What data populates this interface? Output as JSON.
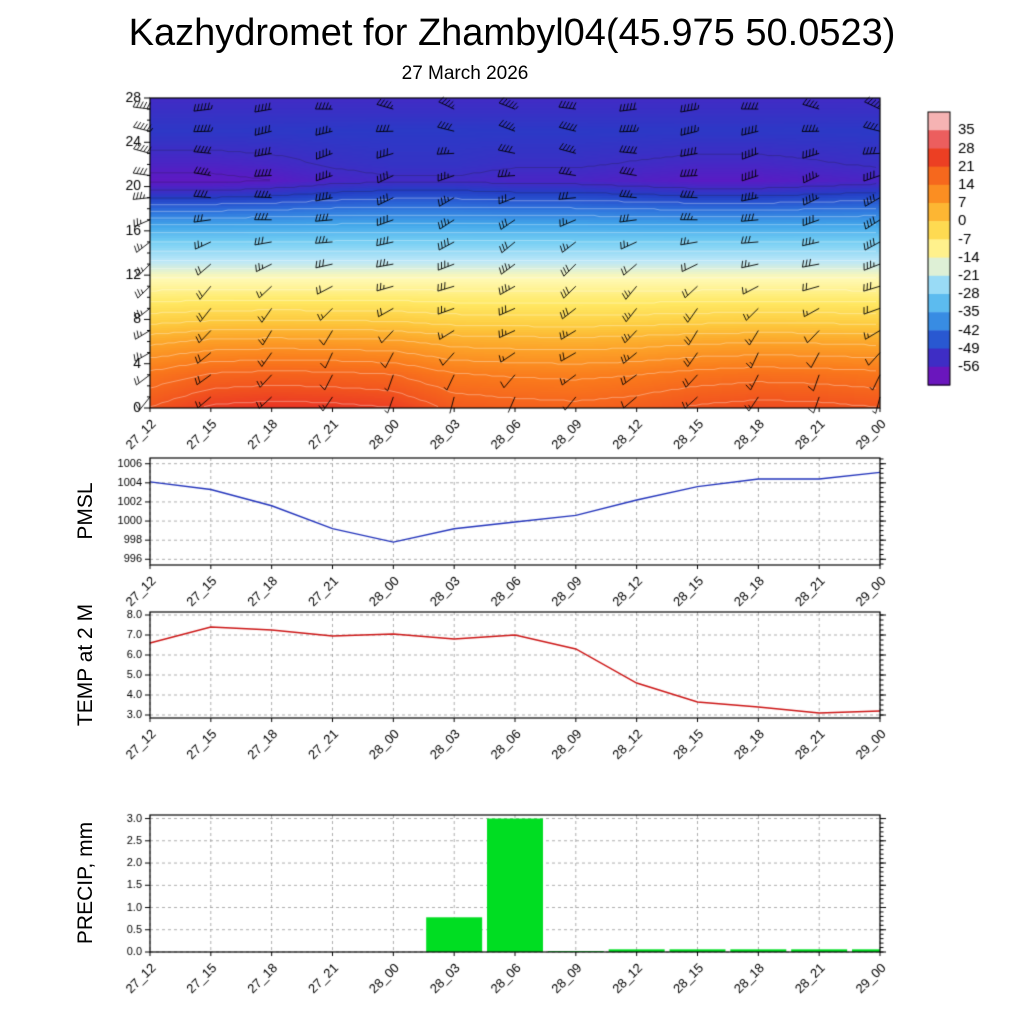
{
  "title": "Kazhydromet for Zhambyl04(45.975 50.0523)",
  "subtitle": "27 March 2026",
  "time_labels": [
    "27_12",
    "27_15",
    "27_18",
    "27_21",
    "28_00",
    "28_03",
    "28_06",
    "28_09",
    "28_12",
    "28_15",
    "28_18",
    "28_21",
    "29_00"
  ],
  "chart_data": [
    {
      "type": "heatmap",
      "name": "upper-air-temperature-cross-section",
      "title": "27 March 2026",
      "overlay": "wind-barbs",
      "x_labels": [
        "27_12",
        "27_15",
        "27_18",
        "27_21",
        "28_00",
        "28_03",
        "28_06",
        "28_09",
        "28_12",
        "28_15",
        "28_18",
        "28_21",
        "29_00"
      ],
      "y_ticks": [
        0,
        4,
        8,
        12,
        16,
        20,
        24,
        28
      ],
      "y_range": [
        0,
        28
      ],
      "colorbar_labels": [
        35,
        28,
        21,
        14,
        7,
        0,
        -7,
        -14,
        -21,
        -28,
        -35,
        -42,
        -49,
        -56
      ],
      "colorbar_stops": [
        {
          "value": 42,
          "color": "#fad2d2"
        },
        {
          "value": 35,
          "color": "#f29494"
        },
        {
          "value": 28,
          "color": "#e62828"
        },
        {
          "value": 21,
          "color": "#f2551e"
        },
        {
          "value": 14,
          "color": "#fa7a1c"
        },
        {
          "value": 7,
          "color": "#fca228"
        },
        {
          "value": 0,
          "color": "#fdca3e"
        },
        {
          "value": -7,
          "color": "#ffe964"
        },
        {
          "value": -14,
          "color": "#fff9b4"
        },
        {
          "value": -21,
          "color": "#bce7f8"
        },
        {
          "value": -28,
          "color": "#76cff4"
        },
        {
          "value": -35,
          "color": "#42a6ea"
        },
        {
          "value": -42,
          "color": "#2e72dc"
        },
        {
          "value": -49,
          "color": "#243ec6"
        },
        {
          "value": -56,
          "color": "#581cc4"
        },
        {
          "value": -63,
          "color": "#7c10b6"
        }
      ],
      "profile_heights": [
        0,
        3,
        6,
        8,
        10,
        12,
        13,
        15,
        17,
        19,
        20.5,
        22,
        25,
        28
      ],
      "profile_temps": [
        17,
        12,
        4,
        -3,
        -9,
        -15,
        -20,
        -28,
        -37,
        -47,
        -54,
        -52,
        -50,
        -53
      ],
      "surface_anomaly": [
        4,
        8,
        9,
        8.5,
        7.5,
        3,
        2,
        1.5,
        2.5,
        4.5,
        5.5,
        5,
        4
      ],
      "upper_anomaly": [
        -3,
        -3,
        -2,
        0,
        1,
        1,
        0,
        0,
        -1,
        -2,
        -2,
        -1,
        0
      ]
    },
    {
      "type": "line",
      "name": "pmsl",
      "ylabel": "PMSL",
      "color": "#2233bb",
      "y_ticks": [
        996,
        998,
        1000,
        1002,
        1004,
        1006
      ],
      "y_range": [
        995.4,
        1006.6
      ],
      "tick_decimals": 0,
      "values": [
        1004.1,
        1003.3,
        1001.6,
        999.2,
        997.8,
        999.2,
        999.9,
        1000.6,
        1002.2,
        1003.6,
        1004.4,
        1004.4,
        1005.1
      ]
    },
    {
      "type": "line",
      "name": "temp-at-2m",
      "ylabel": "TEMP at 2 M",
      "color": "#cc1515",
      "y_ticks": [
        3,
        4,
        5,
        6,
        7,
        8
      ],
      "y_range": [
        2.85,
        8.15
      ],
      "tick_decimals": 1,
      "values": [
        6.6,
        7.4,
        7.25,
        6.95,
        7.05,
        6.8,
        7.0,
        6.3,
        4.6,
        3.65,
        3.4,
        3.1,
        3.2
      ]
    },
    {
      "type": "bar",
      "name": "precip",
      "ylabel": "PRECIP, mm",
      "color": "#00dd22",
      "y_ticks": [
        0,
        0.5,
        1,
        1.5,
        2,
        2.5,
        3
      ],
      "y_range": [
        0,
        3.08
      ],
      "tick_decimals": 1,
      "values": [
        0,
        0,
        0,
        0,
        0,
        0.78,
        3.0,
        0.02,
        0.06,
        0.06,
        0.06,
        0.06,
        0.06
      ]
    }
  ]
}
